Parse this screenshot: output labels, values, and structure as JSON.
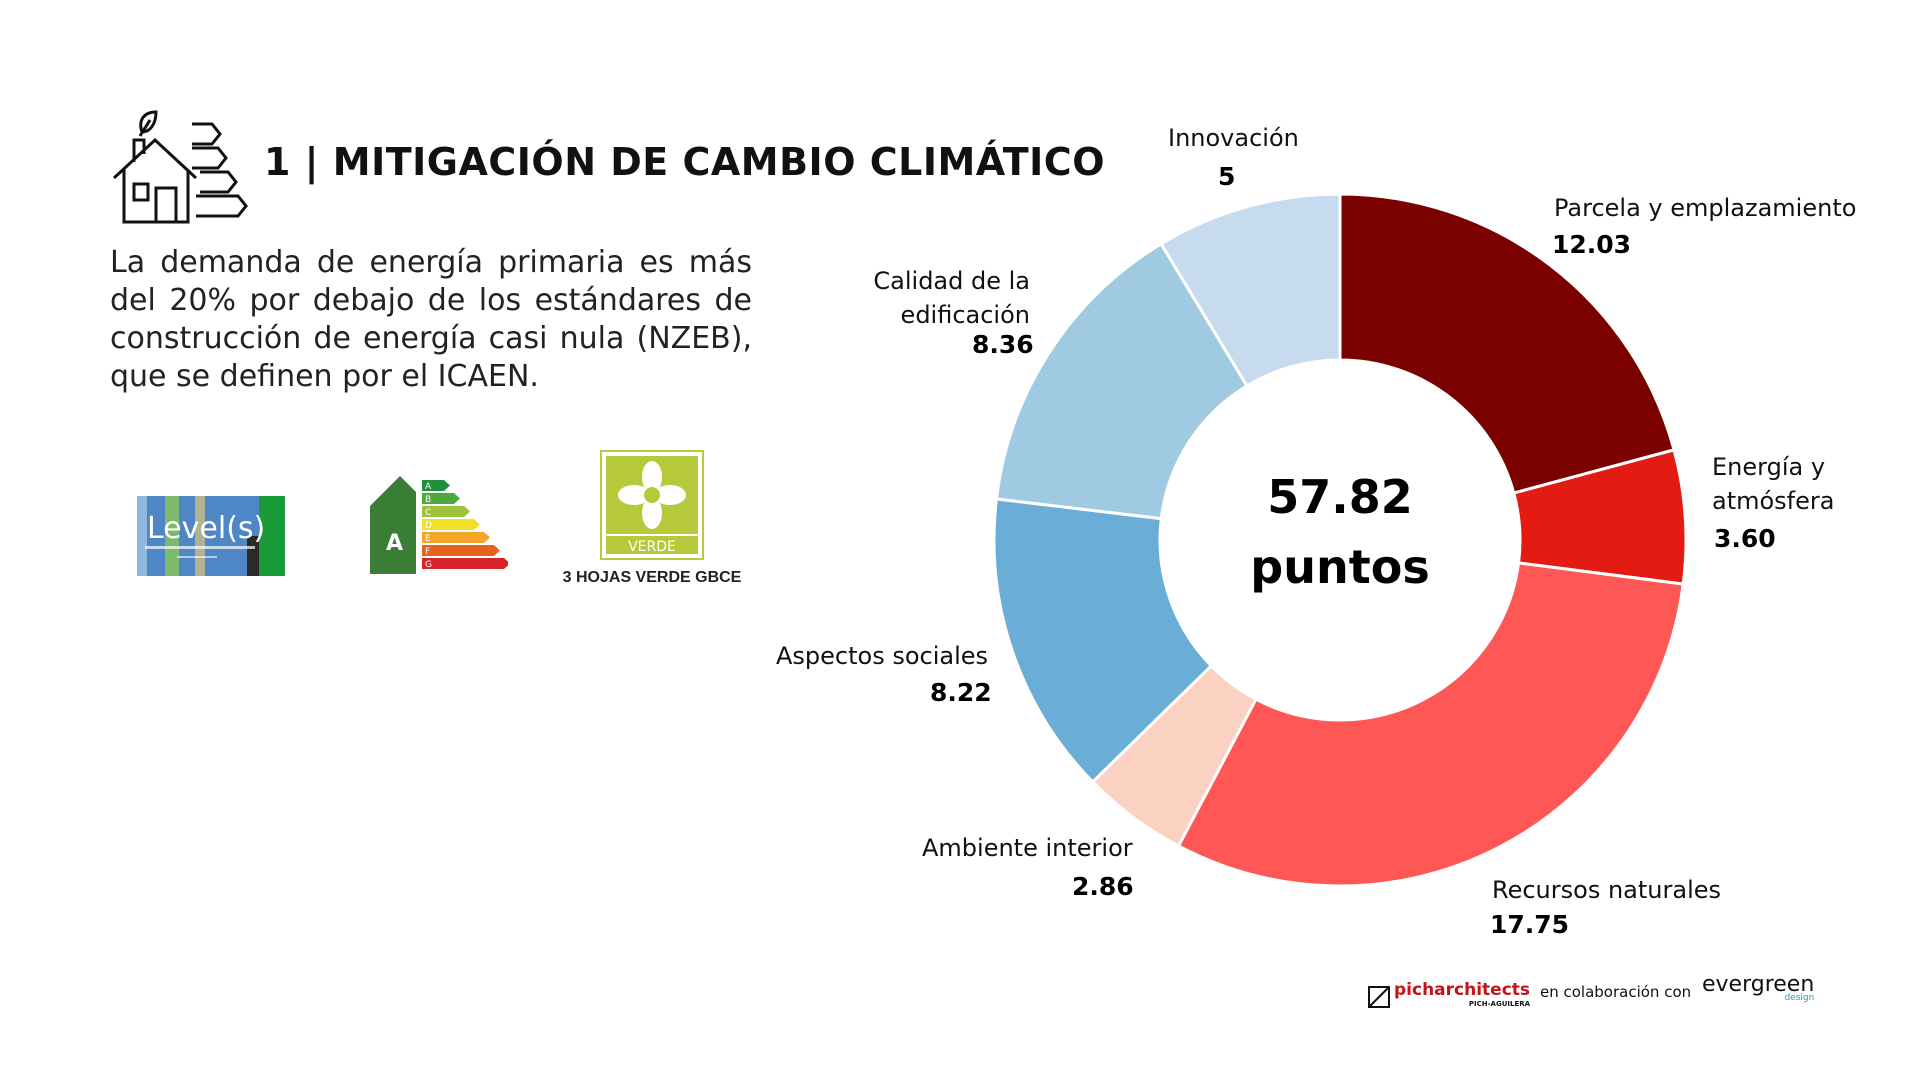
{
  "header": {
    "title": "1 | MITIGACIÓN DE CAMBIO CLIMÁTICO",
    "icon": "house-energy-leaf-icon"
  },
  "description": "La demanda de energía primaria es más del 20% por debajo de los estándares de construcción de energía casi nula (NZEB), que se definen por el ICAEN.",
  "logos": {
    "levels": {
      "text": "Level(s)",
      "icon": "levels-logo"
    },
    "epc": {
      "grade": "A",
      "letters": [
        "A",
        "B",
        "C",
        "D",
        "E",
        "F",
        "G"
      ],
      "icon": "energy-rating-logo"
    },
    "verde": {
      "text": "VERDE",
      "caption": "3 HOJAS VERDE GBCE",
      "icon": "verde-leaf-logo"
    }
  },
  "chart_data": {
    "type": "pie",
    "donut": true,
    "center_value": "57.82",
    "center_label": "puntos",
    "slices": [
      {
        "label": "Parcela y emplazamiento",
        "value": 12.03,
        "value_text": "12.03",
        "color": "#7b0000"
      },
      {
        "label": "Energía y atmósfera",
        "value": 3.6,
        "value_text": "3.60",
        "color": "#e31b12"
      },
      {
        "label": "Recursos naturales",
        "value": 17.75,
        "value_text": "17.75",
        "color": "#ff5656"
      },
      {
        "label": "Ambiente interior",
        "value": 2.86,
        "value_text": "2.86",
        "color": "#fbd2c2"
      },
      {
        "label": "Aspectos sociales",
        "value": 8.22,
        "value_text": "8.22",
        "color": "#6aaed8"
      },
      {
        "label": "Calidad de la edificación",
        "value": 8.36,
        "value_text": "8.36",
        "color": "#9fcae2"
      },
      {
        "label": "Innovación",
        "value": 5,
        "value_text": "5",
        "color": "#c7dbef"
      }
    ]
  },
  "footer": {
    "brand": "picharchitects",
    "brand_sub": "PICH-AGUILERA",
    "collab": "en colaboración con",
    "partner": "evergreen",
    "partner_sub": "design"
  }
}
